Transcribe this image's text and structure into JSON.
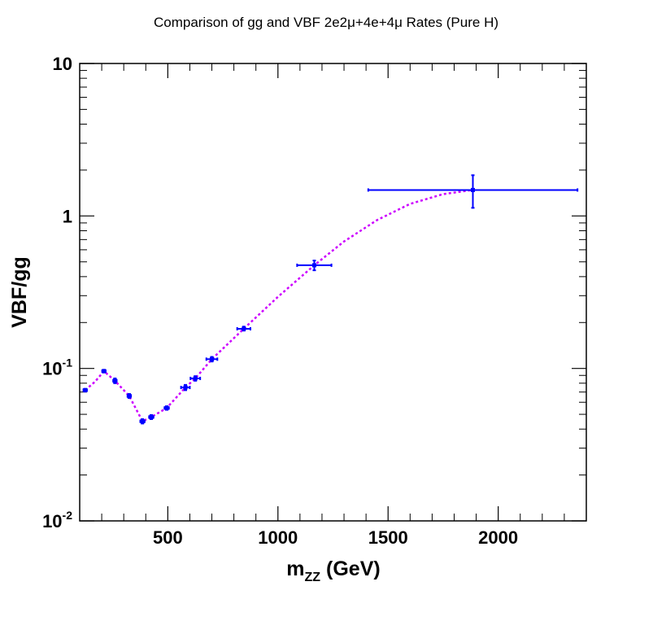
{
  "chart_data": {
    "type": "scatter",
    "title": "Comparison of gg and VBF 2e2μ+4e+4μ Rates (Pure H)",
    "xlabel": {
      "base": "m",
      "sub": "ZZ",
      "rest": " (GeV)"
    },
    "ylabel": "VBF/gg",
    "xlim": [
      100,
      2400
    ],
    "ylim": [
      0.01,
      10
    ],
    "yscale": "log",
    "xticks": [
      {
        "value": 500,
        "label": "500"
      },
      {
        "value": 1000,
        "label": "1000"
      },
      {
        "value": 1500,
        "label": "1500"
      },
      {
        "value": 2000,
        "label": "2000"
      }
    ],
    "yticks": [
      {
        "value": 10,
        "base": "10",
        "exp": ""
      },
      {
        "value": 1,
        "base": "1",
        "exp": ""
      },
      {
        "value": 0.1,
        "base": "10",
        "exp": "-1"
      },
      {
        "value": 0.01,
        "base": "10",
        "exp": "-2"
      }
    ],
    "series": [
      {
        "type": "errorbar",
        "color": "#0000ff",
        "points": [
          {
            "x": 125,
            "y": 0.072,
            "xerr": 8,
            "ylo": 0.0705,
            "yhi": 0.0735
          },
          {
            "x": 210,
            "y": 0.096,
            "xerr": 8,
            "ylo": 0.094,
            "yhi": 0.098
          },
          {
            "x": 260,
            "y": 0.083,
            "xerr": 8,
            "ylo": 0.08,
            "yhi": 0.086
          },
          {
            "x": 325,
            "y": 0.066,
            "xerr": 8,
            "ylo": 0.064,
            "yhi": 0.068
          },
          {
            "x": 385,
            "y": 0.045,
            "xerr": 10,
            "ylo": 0.0435,
            "yhi": 0.0465
          },
          {
            "x": 425,
            "y": 0.048,
            "xerr": 10,
            "ylo": 0.0465,
            "yhi": 0.0495
          },
          {
            "x": 495,
            "y": 0.055,
            "xerr": 10,
            "ylo": 0.0535,
            "yhi": 0.0565
          },
          {
            "x": 580,
            "y": 0.075,
            "xerr": 20,
            "ylo": 0.072,
            "yhi": 0.078
          },
          {
            "x": 625,
            "y": 0.086,
            "xerr": 22,
            "ylo": 0.083,
            "yhi": 0.089
          },
          {
            "x": 700,
            "y": 0.115,
            "xerr": 25,
            "ylo": 0.111,
            "yhi": 0.119
          },
          {
            "x": 845,
            "y": 0.182,
            "xerr": 30,
            "ylo": 0.177,
            "yhi": 0.188
          },
          {
            "x": 1165,
            "y": 0.475,
            "xerr": 78,
            "ylo": 0.44,
            "yhi": 0.51
          },
          {
            "x": 1885,
            "y": 1.48,
            "xerr": 475,
            "ylo": 1.13,
            "yhi": 1.85
          }
        ]
      },
      {
        "type": "line",
        "style": "dotted",
        "color": "#cc00ff",
        "x": [
          125,
          170,
          210,
          260,
          325,
          385,
          425,
          495,
          580,
          625,
          700,
          845,
          1000,
          1165,
          1300,
          1450,
          1600,
          1750,
          1885
        ],
        "y": [
          0.072,
          0.082,
          0.096,
          0.083,
          0.066,
          0.045,
          0.048,
          0.055,
          0.075,
          0.086,
          0.115,
          0.182,
          0.295,
          0.475,
          0.68,
          0.94,
          1.2,
          1.39,
          1.48
        ]
      }
    ]
  }
}
